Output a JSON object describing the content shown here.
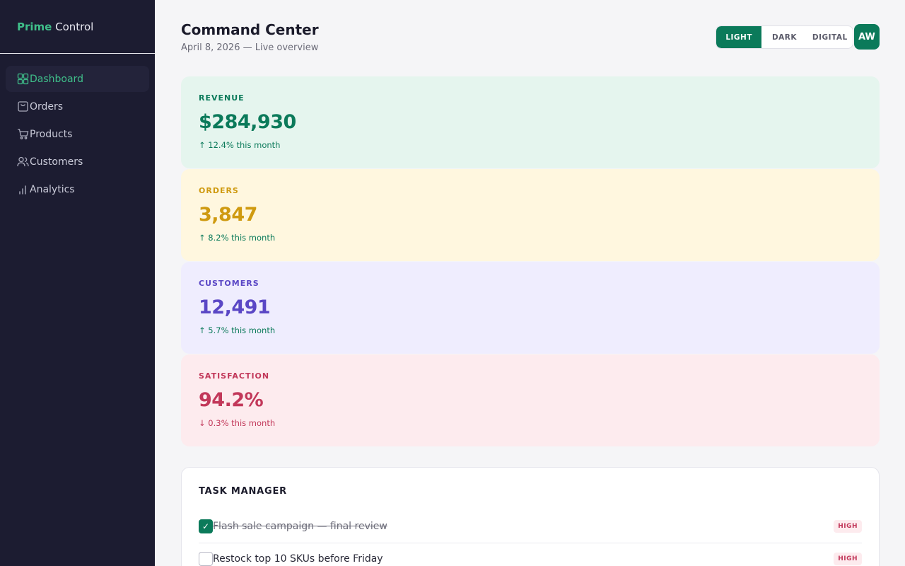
{
  "brand": {
    "accent": "Prime",
    "rest": " Control"
  },
  "nav": [
    {
      "label": "Dashboard",
      "icon": "grid-icon",
      "active": true
    },
    {
      "label": "Orders",
      "icon": "bag-icon",
      "active": false
    },
    {
      "label": "Products",
      "icon": "cart-icon",
      "active": false
    },
    {
      "label": "Customers",
      "icon": "users-icon",
      "active": false
    },
    {
      "label": "Analytics",
      "icon": "bar-chart-icon",
      "active": false
    }
  ],
  "header": {
    "title": "Command Center",
    "subtitle": "April 8, 2026 — Live overview",
    "theme_options": [
      "LIGHT",
      "DARK",
      "DIGITAL"
    ],
    "selected_theme": "LIGHT",
    "avatar_initials": "AW"
  },
  "stats": [
    {
      "label": "REVENUE",
      "value": "$284,930",
      "change": "↑ 12.4% this month",
      "trend": "up",
      "color": "#0b7a5a"
    },
    {
      "label": "ORDERS",
      "value": "3,847",
      "change": "↑ 8.2% this month",
      "trend": "up",
      "color": "#cf9a10"
    },
    {
      "label": "CUSTOMERS",
      "value": "12,491",
      "change": "↑ 5.7% this month",
      "trend": "up",
      "color": "#5a47c5"
    },
    {
      "label": "SATISFACTION",
      "value": "94.2%",
      "change": "↓ 0.3% this month",
      "trend": "down",
      "color": "#c2385a"
    }
  ],
  "tasks": {
    "title": "TASK MANAGER",
    "items": [
      {
        "text": "Flash sale campaign — final review",
        "done": true,
        "priority": "HIGH",
        "check": "✓"
      },
      {
        "text": "Restock top 10 SKUs before Friday",
        "done": false,
        "priority": "HIGH",
        "check": ""
      }
    ]
  },
  "colors": {
    "sidebar": "#1c1c31",
    "accent": "#0b7a5a",
    "brand_green": "#3fbf8a"
  }
}
